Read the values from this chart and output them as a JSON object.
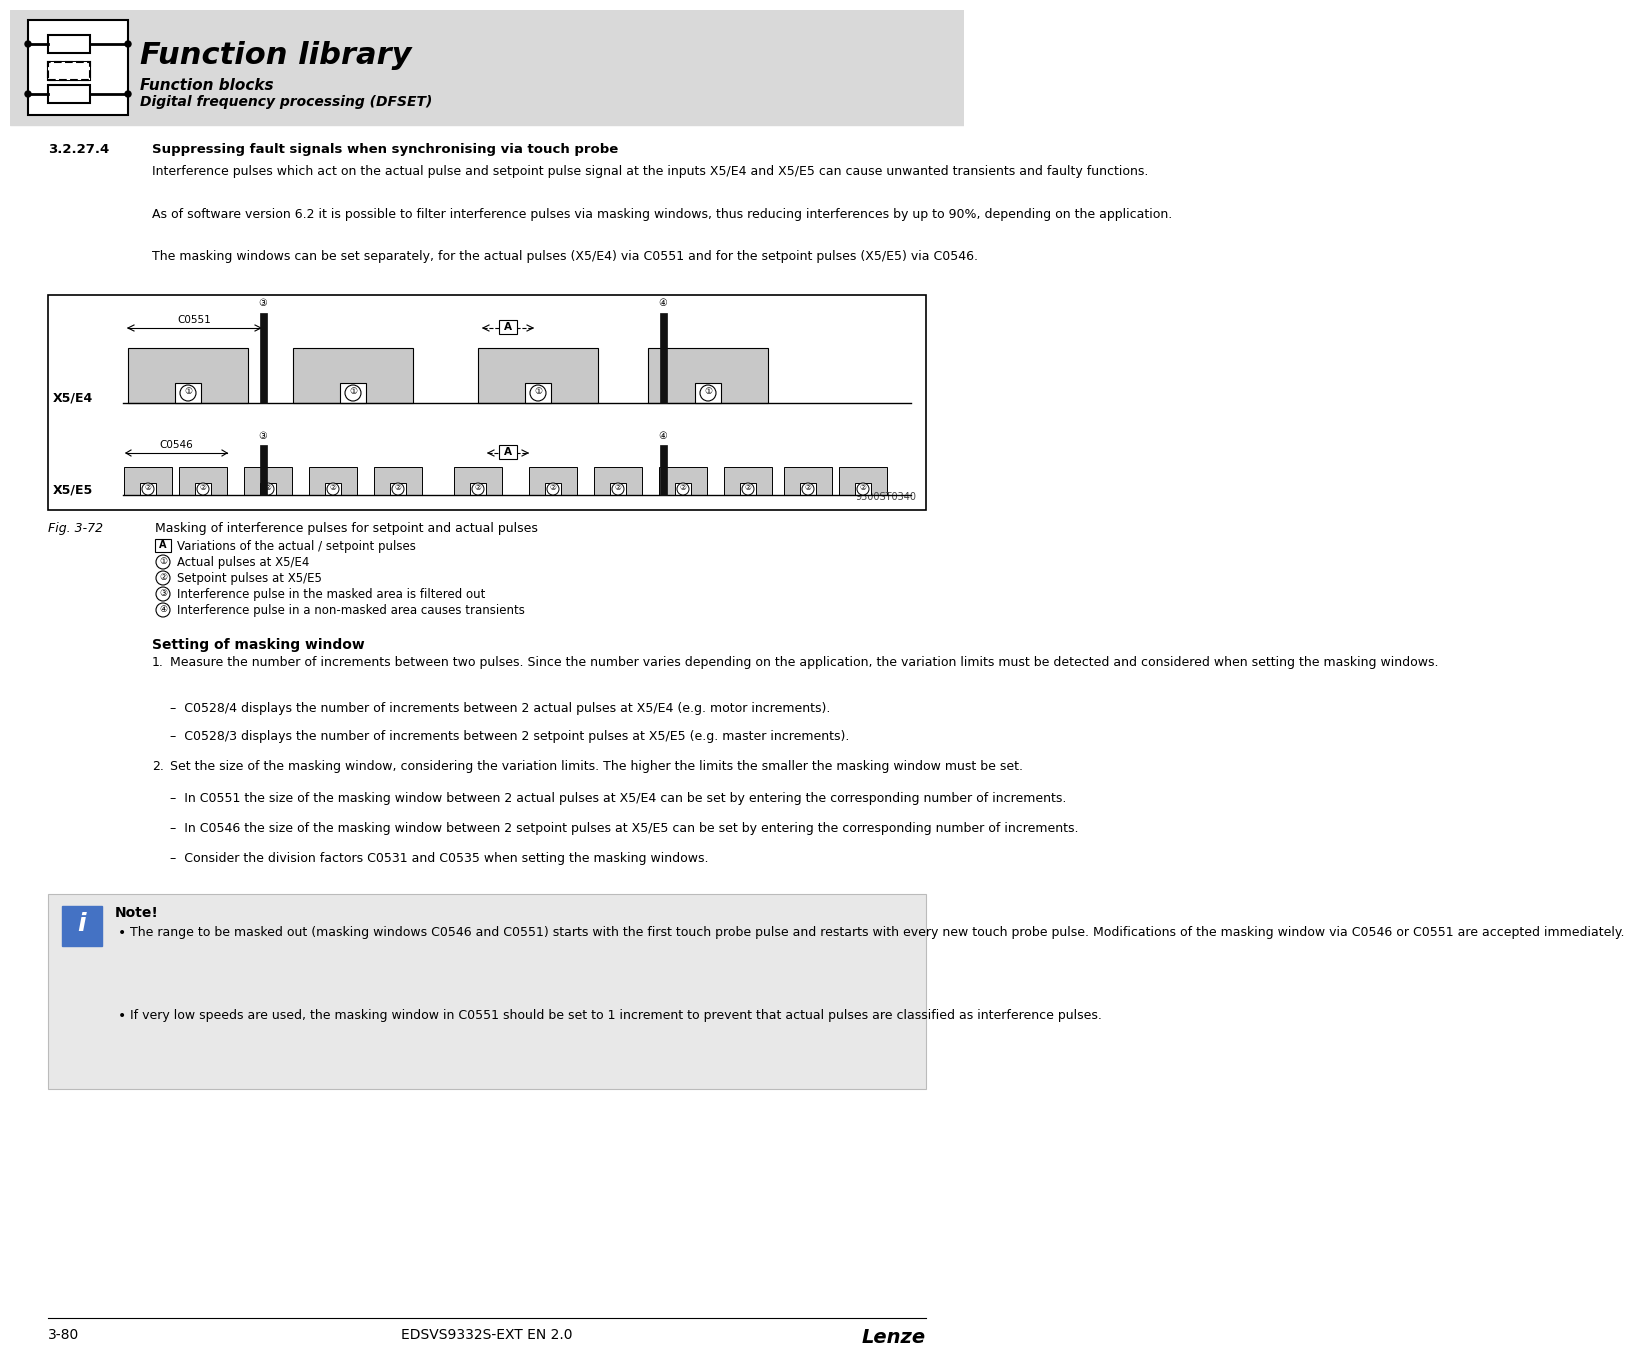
{
  "page_bg": "#ffffff",
  "header_bg": "#d9d9d9",
  "header_title": "Function library",
  "header_sub1": "Function blocks",
  "header_sub2": "Digital frequency processing (DFSET)",
  "section_num": "3.2.27.4",
  "section_title": "Suppressing fault signals when synchronising via touch probe",
  "para1": "Interference pulses which act on the actual pulse and setpoint pulse signal at the inputs X5/E4 and X5/E5 can cause unwanted transients and faulty functions.",
  "para2": "As of software version 6.2 it is possible to filter interference pulses via masking windows, thus reducing interferences by up to 90%, depending on the application.",
  "para3": "The masking windows can be set separately, for the actual pulses (X5/E4) via C0551 and for the setpoint pulses (X5/E5) via C0546.",
  "fig_label": "Fig. 3-72",
  "fig_caption": "Masking of interference pulses for setpoint and actual pulses",
  "legend_A": "Variations of the actual / setpoint pulses",
  "legend_1": "Actual pulses at X5/E4",
  "legend_2": "Setpoint pulses at X5/E5",
  "legend_3": "Interference pulse in the masked area is filtered out",
  "legend_4": "Interference pulse in a non-masked area causes transients",
  "setting_title": "Setting of masking window",
  "b1_num": "1.",
  "b1_text": "Measure the number of increments between two pulses. Since the number varies depending on the application, the variation limits must be detected and considered when setting the masking windows.",
  "b1a": "C0528/4 displays the number of increments between 2 actual pulses at X5/E4 (e.g. motor increments).",
  "b1b": "C0528/3 displays the number of increments between 2 setpoint pulses at X5/E5 (e.g. master increments).",
  "b2_num": "2.",
  "b2_text": "Set the size of the masking window, considering the variation limits. The higher the limits the smaller the masking window must be set.",
  "b2a": "In C0551 the size of the masking window between 2 actual pulses at X5/E4 can be set by entering the corresponding number of increments.",
  "b2b": "In C0546 the size of the masking window between 2 setpoint pulses at X5/E5 can be set by entering the corresponding number of increments.",
  "b2c": "Consider the division factors C0531 and C0535 when setting the masking windows.",
  "note_title": "Note!",
  "note1": "The range to be masked out (masking windows C0546 and C0551) starts with the first touch probe pulse and restarts with every new touch probe pulse. Modifications of the masking window via C0546 or C0551 are accepted immediately.",
  "note2": "If very low speeds are used, the masking window in C0551 should be set to 1 increment to prevent that actual pulses are classified as interference pulses.",
  "footer_left": "3-80",
  "footer_center": "EDSVS9332S-EXT EN 2.0",
  "footer_right": "Lenze",
  "gray_c": "#c8c8c8",
  "white_c": "#ffffff",
  "black_c": "#000000",
  "note_bg": "#e8e8e8",
  "diag_id": "9300ST0340"
}
